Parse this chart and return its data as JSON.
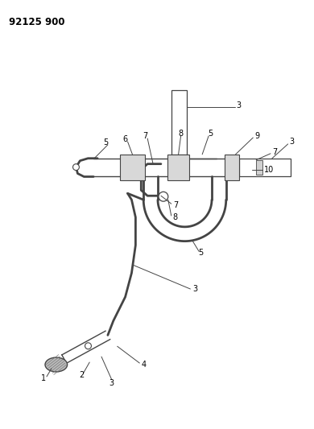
{
  "title": "92125 900",
  "bg_color": "#ffffff",
  "line_color": "#444444",
  "label_color": "#000000",
  "title_fontsize": 8.5,
  "label_fontsize": 7,
  "figsize": [
    3.9,
    5.33
  ],
  "dpi": 100
}
